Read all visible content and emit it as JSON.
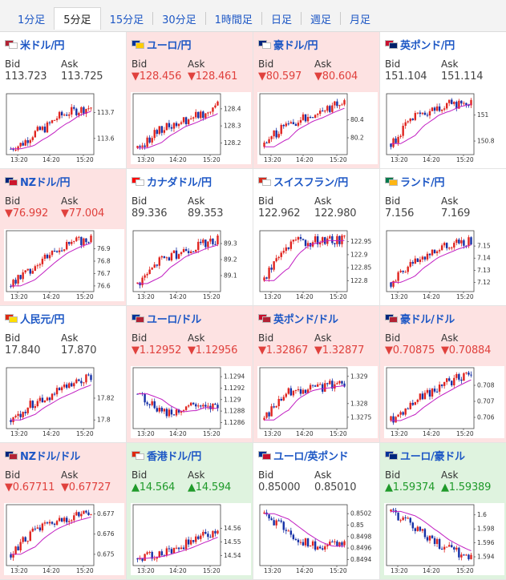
{
  "tabs": [
    {
      "label": "1分足",
      "active": false
    },
    {
      "label": "5分足",
      "active": true
    },
    {
      "label": "15分足",
      "active": false
    },
    {
      "label": "30分足",
      "active": false
    },
    {
      "label": "1時間足",
      "active": false
    },
    {
      "label": "日足",
      "active": false
    },
    {
      "label": "週足",
      "active": false
    },
    {
      "label": "月足",
      "active": false
    }
  ],
  "labels": {
    "bid": "Bid",
    "ask": "Ask"
  },
  "colors": {
    "down_bg": "#fde2e2",
    "up_bg": "#dff3df",
    "down_text": "#e0413d",
    "up_text": "#1f9a2a",
    "bull": "#e0241f",
    "bear": "#1530a6",
    "ma": "#c21fc2"
  },
  "cells": [
    {
      "pair": "米ドル/円",
      "flag": [
        "#b22234",
        "#ffffff"
      ],
      "dir": "flat",
      "bid": "113.723",
      "ask": "113.725",
      "chart": {
        "type": "candlestick",
        "x_ticks": [
          "13:20",
          "14:20",
          "15:20"
        ],
        "y_ticks": [
          "113.7",
          "113.6"
        ],
        "y_range": [
          113.55,
          113.76
        ],
        "trend": [
          113.56,
          113.58,
          113.62,
          113.64,
          113.68,
          113.7,
          113.71,
          113.72
        ]
      }
    },
    {
      "pair": "ユーロ/円",
      "flag": [
        "#003399",
        "#ffcc00"
      ],
      "dir": "down",
      "bid": "▼128.456",
      "ask": "▼128.461",
      "chart": {
        "type": "candlestick",
        "x_ticks": [
          "13:20",
          "14:20",
          "15:20"
        ],
        "y_ticks": [
          "128.4",
          "128.3",
          "128.2"
        ],
        "y_range": [
          128.15,
          128.47
        ],
        "trend": [
          128.17,
          128.22,
          128.28,
          128.3,
          128.33,
          128.36,
          128.38,
          128.44
        ]
      }
    },
    {
      "pair": "豪ドル/円",
      "flag": [
        "#00247d",
        "#ffffff"
      ],
      "dir": "down",
      "bid": "▼80.597",
      "ask": "▼80.604",
      "chart": {
        "type": "candlestick",
        "x_ticks": [
          "13:20",
          "14:20",
          "15:20"
        ],
        "y_ticks": [
          "80.4",
          "80.2"
        ],
        "y_range": [
          80.05,
          80.65
        ],
        "trend": [
          80.1,
          80.25,
          80.35,
          80.38,
          80.45,
          80.5,
          80.55,
          80.6
        ]
      }
    },
    {
      "pair": "英ポンド/円",
      "flag": [
        "#c8102e",
        "#012169"
      ],
      "dir": "flat",
      "bid": "151.104",
      "ask": "151.114",
      "chart": {
        "type": "candlestick",
        "x_ticks": [
          "13:20",
          "14:20",
          "15:20"
        ],
        "y_ticks": [
          "151",
          "150.8"
        ],
        "y_range": [
          150.72,
          151.14
        ],
        "trend": [
          150.78,
          150.88,
          150.98,
          151.0,
          151.05,
          151.08,
          151.09,
          151.1
        ]
      }
    },
    {
      "pair": "NZドル/円",
      "flag": [
        "#00247d",
        "#cc142b"
      ],
      "dir": "down",
      "bid": "▼76.992",
      "ask": "▼77.004",
      "chart": {
        "type": "candlestick",
        "x_ticks": [
          "13:20",
          "14:20",
          "15:20"
        ],
        "y_ticks": [
          "76.9",
          "76.8",
          "76.7",
          "76.6"
        ],
        "y_range": [
          76.58,
          77.02
        ],
        "trend": [
          76.6,
          76.68,
          76.76,
          76.84,
          76.9,
          76.93,
          76.96,
          76.99
        ]
      }
    },
    {
      "pair": "カナダドル/円",
      "flag": [
        "#ff0000",
        "#ffffff"
      ],
      "dir": "flat",
      "bid": "89.336",
      "ask": "89.353",
      "chart": {
        "type": "candlestick",
        "x_ticks": [
          "13:20",
          "14:20",
          "15:20"
        ],
        "y_ticks": [
          "89.3",
          "89.2",
          "89.1"
        ],
        "y_range": [
          89.02,
          89.36
        ],
        "trend": [
          89.05,
          89.12,
          89.2,
          89.22,
          89.26,
          89.28,
          89.3,
          89.33
        ]
      }
    },
    {
      "pair": "スイスフラン/円",
      "flag": [
        "#d52b1e",
        "#ffffff"
      ],
      "dir": "flat",
      "bid": "122.962",
      "ask": "122.980",
      "chart": {
        "type": "candlestick",
        "x_ticks": [
          "13:20",
          "14:20",
          "15:20"
        ],
        "y_ticks": [
          "122.95",
          "122.9",
          "122.85",
          "122.8"
        ],
        "y_range": [
          122.77,
          122.98
        ],
        "trend": [
          122.8,
          122.88,
          122.93,
          122.95,
          122.95,
          122.96,
          122.95,
          122.96
        ]
      }
    },
    {
      "pair": "ランド/円",
      "flag": [
        "#007a4d",
        "#ffb612"
      ],
      "dir": "flat",
      "bid": "7.156",
      "ask": "7.169",
      "chart": {
        "type": "candlestick",
        "x_ticks": [
          "13:20",
          "14:20",
          "15:20"
        ],
        "y_ticks": [
          "7.15",
          "7.14",
          "7.13",
          "7.12"
        ],
        "y_range": [
          7.115,
          7.16
        ],
        "trend": [
          7.12,
          7.128,
          7.138,
          7.142,
          7.146,
          7.15,
          7.152,
          7.155
        ]
      }
    },
    {
      "pair": "人民元/円",
      "flag": [
        "#de2910",
        "#ffde00"
      ],
      "dir": "flat",
      "bid": "17.840",
      "ask": "17.870",
      "chart": {
        "type": "candlestick",
        "x_ticks": [
          "13:20",
          "14:20",
          "15:20"
        ],
        "y_ticks": [
          "17.82",
          "17.8"
        ],
        "y_range": [
          17.795,
          17.845
        ],
        "trend": [
          17.8,
          17.808,
          17.816,
          17.82,
          17.826,
          17.83,
          17.834,
          17.84
        ]
      }
    },
    {
      "pair": "ユーロ/ドル",
      "flag": [
        "#003399",
        "#b22234"
      ],
      "dir": "down",
      "bid": "▼1.12952",
      "ask": "▼1.12956",
      "chart": {
        "type": "candlestick",
        "x_ticks": [
          "13:20",
          "14:20",
          "15:20"
        ],
        "y_ticks": [
          "1.1294",
          "1.1292",
          "1.129",
          "1.1288",
          "1.1286"
        ],
        "y_range": [
          1.12855,
          1.1295
        ],
        "trend": [
          1.1291,
          1.12895,
          1.1288,
          1.12875,
          1.12885,
          1.1289,
          1.1288,
          1.1289
        ]
      }
    },
    {
      "pair": "英ポンド/ドル",
      "flag": [
        "#c8102e",
        "#b22234"
      ],
      "dir": "down",
      "bid": "▼1.32867",
      "ask": "▼1.32877",
      "chart": {
        "type": "candlestick",
        "x_ticks": [
          "13:20",
          "14:20",
          "15:20"
        ],
        "y_ticks": [
          "1.329",
          "1.328",
          "1.3275"
        ],
        "y_range": [
          1.3272,
          1.3292
        ],
        "trend": [
          1.3274,
          1.328,
          1.3284,
          1.3285,
          1.3286,
          1.3286,
          1.3287,
          1.3287
        ]
      }
    },
    {
      "pair": "豪ドル/ドル",
      "flag": [
        "#00247d",
        "#b22234"
      ],
      "dir": "down",
      "bid": "▼0.70875",
      "ask": "▼0.70884",
      "chart": {
        "type": "candlestick",
        "x_ticks": [
          "13:20",
          "14:20",
          "15:20"
        ],
        "y_ticks": [
          "0.708",
          "0.707",
          "0.706"
        ],
        "y_range": [
          0.7055,
          0.7089
        ],
        "trend": [
          0.7058,
          0.7064,
          0.707,
          0.7074,
          0.7078,
          0.7082,
          0.7085,
          0.7087
        ]
      }
    },
    {
      "pair": "NZドル/ドル",
      "flag": [
        "#00247d",
        "#b22234"
      ],
      "dir": "down",
      "bid": "▼0.67711",
      "ask": "▼0.67727",
      "chart": {
        "type": "candlestick",
        "x_ticks": [
          "13:20",
          "14:20",
          "15:20"
        ],
        "y_ticks": [
          "0.677",
          "0.676",
          "0.675"
        ],
        "y_range": [
          0.6746,
          0.6773
        ],
        "trend": [
          0.675,
          0.6756,
          0.6761,
          0.6764,
          0.6766,
          0.6768,
          0.6769,
          0.677
        ]
      }
    },
    {
      "pair": "香港ドル/円",
      "flag": [
        "#de2910",
        "#ffffff"
      ],
      "dir": "up",
      "bid": "▲14.564",
      "ask": "▲14.594",
      "chart": {
        "type": "candlestick",
        "x_ticks": [
          "13:20",
          "14:20",
          "15:20"
        ],
        "y_ticks": [
          "14.56",
          "14.55",
          "14.54"
        ],
        "y_range": [
          14.535,
          14.575
        ],
        "trend": [
          14.538,
          14.54,
          14.542,
          14.545,
          14.548,
          14.552,
          14.555,
          14.558
        ]
      }
    },
    {
      "pair": "ユーロ/英ポンド",
      "flag": [
        "#003399",
        "#c8102e"
      ],
      "dir": "flat",
      "bid": "0.85000",
      "ask": "0.85010",
      "chart": {
        "type": "candlestick",
        "x_ticks": [
          "13:20",
          "14:20",
          "15:20"
        ],
        "y_ticks": [
          "0.8502",
          "0.85",
          "0.8498",
          "0.8496",
          "0.8494"
        ],
        "y_range": [
          0.84935,
          0.8503
        ],
        "trend": [
          0.8502,
          0.85005,
          0.8499,
          0.84975,
          0.84965,
          0.8496,
          0.84965,
          0.8497
        ]
      }
    },
    {
      "pair": "ユーロ/豪ドル",
      "flag": [
        "#003399",
        "#00247d"
      ],
      "dir": "up",
      "bid": "▲1.59374",
      "ask": "▲1.59389",
      "chart": {
        "type": "candlestick",
        "x_ticks": [
          "13:20",
          "14:20",
          "15:20"
        ],
        "y_ticks": [
          "1.6",
          "1.598",
          "1.596",
          "1.594"
        ],
        "y_range": [
          1.5932,
          1.601
        ],
        "trend": [
          1.6005,
          1.5995,
          1.5985,
          1.597,
          1.596,
          1.5952,
          1.5945,
          1.594
        ]
      }
    }
  ]
}
